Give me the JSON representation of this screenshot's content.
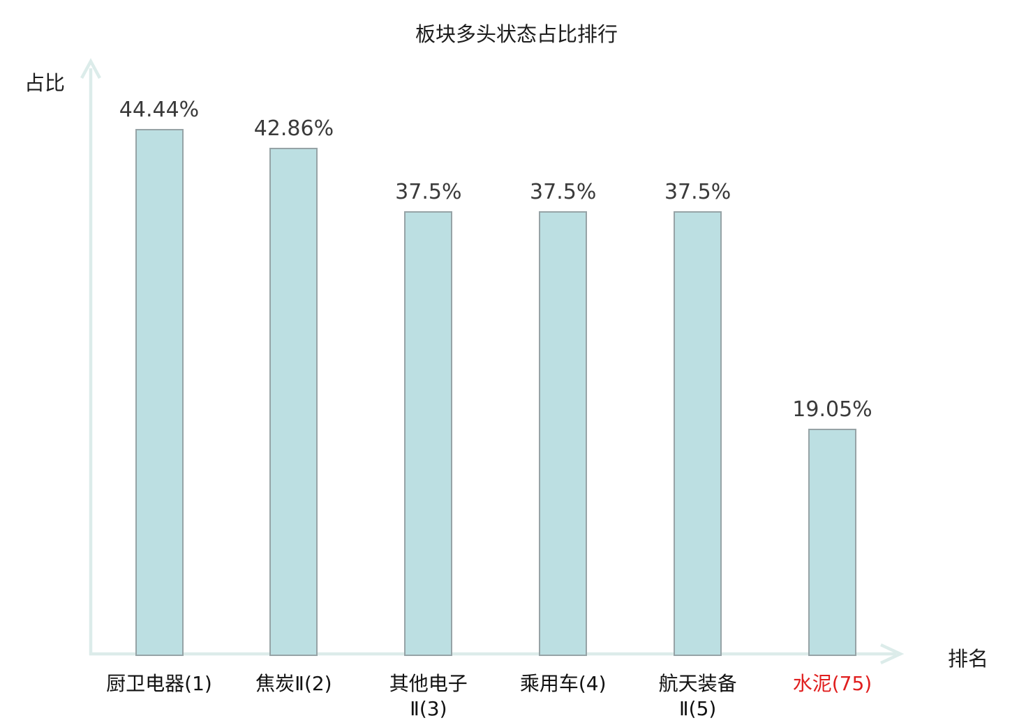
{
  "chart_data": {
    "type": "bar",
    "title": "板块多头状态占比排行",
    "xlabel": "排名",
    "ylabel": "占比",
    "categories": [
      "厨卫电器(1)",
      "焦炭Ⅱ(2)",
      "其他电子Ⅱ(3)",
      "乘用车(4)",
      "航天装备Ⅱ(5)",
      "水泥(75)"
    ],
    "category_display": [
      "厨卫电器(1)",
      "焦炭Ⅱ(2)",
      "其他电子\nⅡ(3)",
      "乘用车(4)",
      "航天装备\nⅡ(5)",
      "水泥(75)"
    ],
    "values": [
      44.44,
      42.86,
      37.5,
      37.5,
      37.5,
      19.05
    ],
    "value_labels": [
      "44.44%",
      "42.86%",
      "37.5%",
      "37.5%",
      "37.5%",
      "19.05%"
    ],
    "highlighted_category_index": 5,
    "ylim": [
      0,
      50
    ],
    "grid": false,
    "legend": "none"
  },
  "colors": {
    "bar_fill": "#bcdfe2",
    "bar_border": "#96a3a6",
    "axis": "#dcecea",
    "value_label": "#3a3a3a",
    "text": "#1c1c1c",
    "highlight": "#e01e1e"
  }
}
